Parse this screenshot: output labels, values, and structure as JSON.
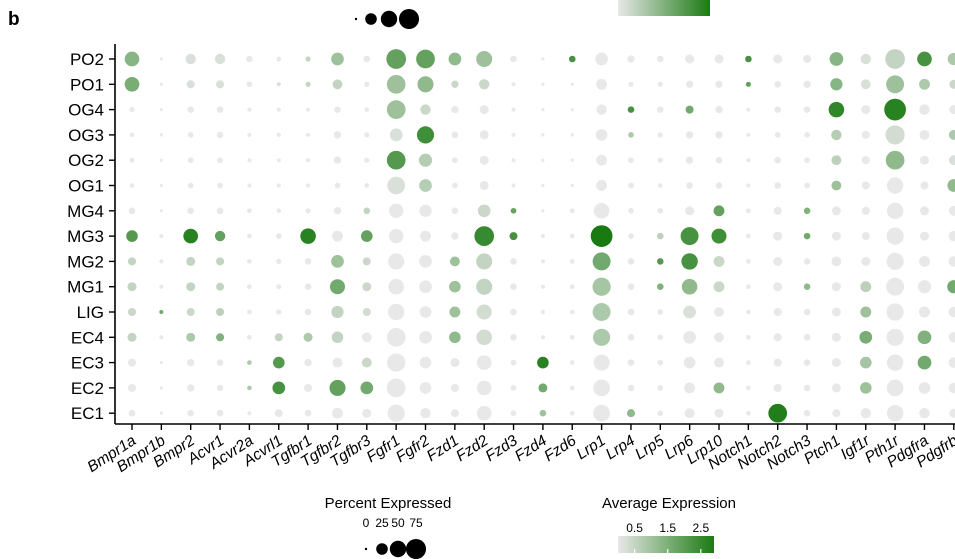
{
  "panel_label": "b",
  "chart_data": {
    "type": "dotplot",
    "genes": [
      "Bmpr1a",
      "Bmpr1b",
      "Bmpr2",
      "Acvr1",
      "Acvr2a",
      "Acvrl1",
      "Tgfbr1",
      "Tgfbr2",
      "Tgfbr3",
      "Fgfr1",
      "Fgfr2",
      "Fzd1",
      "Fzd2",
      "Fzd3",
      "Fzd4",
      "Fzd6",
      "Lrp1",
      "Lrp4",
      "Lrp5",
      "Lrp6",
      "Lrp10",
      "Notch1",
      "Notch2",
      "Notch3",
      "Ptch1",
      "Igf1r",
      "Pth1r",
      "Pdgfra",
      "Pdgfrb"
    ],
    "clusters": [
      "PO2",
      "PO1",
      "OG4",
      "OG3",
      "OG2",
      "OG1",
      "MG4",
      "MG3",
      "MG2",
      "MG1",
      "LIG",
      "EC4",
      "EC3",
      "EC2",
      "EC1"
    ],
    "size_legend": {
      "title": "Percent Expressed",
      "ticks": [
        "0",
        "25",
        "50",
        "75"
      ],
      "values": [
        0,
        25,
        50,
        75
      ]
    },
    "color_legend": {
      "title": "Average Expression",
      "ticks": [
        "0.5",
        "1.5",
        "2.5"
      ],
      "values": [
        0.5,
        1.5,
        2.5
      ],
      "low_color": "#e8e8e8",
      "high_color": "#1a7a12"
    },
    "percent": [
      [
        40,
        2,
        20,
        20,
        8,
        4,
        5,
        30,
        8,
        72,
        65,
        30,
        48,
        8,
        2,
        8,
        30,
        10,
        8,
        15,
        15,
        8,
        15,
        12,
        35,
        20,
        72,
        40,
        28
      ],
      [
        40,
        2,
        12,
        12,
        6,
        3,
        5,
        18,
        5,
        65,
        48,
        10,
        20,
        3,
        2,
        2,
        22,
        5,
        5,
        10,
        10,
        5,
        8,
        10,
        28,
        18,
        60,
        22,
        15
      ],
      [
        5,
        2,
        8,
        8,
        3,
        3,
        3,
        8,
        4,
        65,
        20,
        10,
        15,
        3,
        2,
        2,
        20,
        8,
        8,
        12,
        10,
        3,
        8,
        8,
        45,
        15,
        88,
        20,
        15
      ],
      [
        4,
        2,
        6,
        8,
        3,
        3,
        3,
        10,
        5,
        30,
        55,
        8,
        15,
        3,
        2,
        2,
        25,
        6,
        5,
        10,
        10,
        3,
        6,
        6,
        20,
        12,
        68,
        18,
        18
      ],
      [
        4,
        2,
        6,
        6,
        3,
        3,
        3,
        10,
        5,
        65,
        32,
        6,
        15,
        3,
        2,
        2,
        22,
        6,
        5,
        10,
        8,
        3,
        8,
        6,
        18,
        12,
        65,
        15,
        18
      ],
      [
        4,
        2,
        6,
        6,
        3,
        3,
        3,
        6,
        4,
        58,
        30,
        6,
        15,
        3,
        2,
        2,
        22,
        6,
        4,
        8,
        8,
        3,
        8,
        6,
        18,
        12,
        50,
        12,
        30
      ],
      [
        8,
        2,
        8,
        8,
        4,
        4,
        5,
        10,
        8,
        38,
        28,
        8,
        30,
        6,
        2,
        4,
        45,
        6,
        6,
        15,
        22,
        4,
        12,
        8,
        15,
        12,
        50,
        15,
        18
      ],
      [
        25,
        3,
        40,
        20,
        4,
        6,
        45,
        22,
        25,
        38,
        22,
        10,
        72,
        12,
        3,
        4,
        88,
        6,
        8,
        60,
        42,
        4,
        15,
        8,
        15,
        12,
        55,
        15,
        20
      ],
      [
        12,
        3,
        15,
        12,
        4,
        5,
        8,
        30,
        12,
        48,
        30,
        18,
        48,
        8,
        3,
        4,
        60,
        8,
        8,
        50,
        22,
        4,
        15,
        8,
        18,
        15,
        55,
        22,
        20
      ],
      [
        15,
        3,
        15,
        12,
        4,
        5,
        8,
        42,
        15,
        45,
        30,
        25,
        48,
        8,
        3,
        4,
        62,
        8,
        8,
        45,
        22,
        4,
        15,
        8,
        15,
        22,
        60,
        32,
        32
      ],
      [
        12,
        3,
        12,
        12,
        4,
        5,
        8,
        28,
        12,
        50,
        25,
        22,
        42,
        8,
        3,
        4,
        60,
        8,
        6,
        30,
        18,
        4,
        12,
        8,
        15,
        22,
        55,
        22,
        20
      ],
      [
        15,
        3,
        15,
        12,
        4,
        12,
        15,
        25,
        18,
        65,
        30,
        25,
        45,
        8,
        3,
        4,
        55,
        8,
        6,
        30,
        18,
        4,
        12,
        8,
        15,
        30,
        55,
        35,
        20
      ],
      [
        12,
        2,
        10,
        8,
        4,
        25,
        10,
        18,
        18,
        62,
        25,
        15,
        40,
        6,
        25,
        4,
        48,
        8,
        6,
        25,
        18,
        4,
        12,
        8,
        15,
        25,
        50,
        35,
        20
      ],
      [
        12,
        2,
        10,
        8,
        4,
        30,
        12,
        48,
        30,
        65,
        25,
        12,
        40,
        6,
        15,
        4,
        52,
        8,
        6,
        22,
        22,
        4,
        12,
        8,
        15,
        25,
        52,
        25,
        20
      ],
      [
        8,
        2,
        8,
        8,
        3,
        12,
        8,
        22,
        15,
        55,
        20,
        12,
        40,
        6,
        8,
        4,
        52,
        12,
        6,
        18,
        15,
        4,
        65,
        8,
        12,
        20,
        50,
        20,
        15
      ]
    ],
    "avg": [
      [
        1.3,
        0,
        0.2,
        0.2,
        0,
        0,
        0.5,
        1.0,
        0,
        1.8,
        1.8,
        1.2,
        1.0,
        0,
        0,
        2.2,
        0,
        0,
        0,
        0,
        0,
        2.2,
        0,
        0,
        1.3,
        0.2,
        0.5,
        2.2,
        0.8
      ],
      [
        1.5,
        0,
        0.2,
        0.2,
        0,
        0.2,
        0.5,
        0.5,
        0,
        1.0,
        1.2,
        0.4,
        0.4,
        0,
        0,
        0,
        0,
        0,
        0,
        0,
        0,
        1.8,
        0,
        0,
        1.3,
        0.2,
        1.0,
        0.8,
        0.4
      ],
      [
        0,
        0,
        0,
        0,
        0,
        0,
        0,
        0,
        0,
        1.0,
        0.4,
        0,
        0,
        0,
        0,
        0,
        0,
        2.2,
        0,
        1.6,
        0,
        0,
        0,
        0,
        2.5,
        0,
        2.6,
        0,
        0
      ],
      [
        0,
        0,
        0,
        0,
        0,
        0,
        0,
        0,
        0,
        0.2,
        2.3,
        0,
        0,
        0,
        0,
        0,
        0,
        0.8,
        0,
        0,
        0,
        0,
        0,
        0,
        0.7,
        0,
        0.3,
        0,
        0.8
      ],
      [
        0,
        0,
        0,
        0,
        0,
        0,
        0,
        0,
        0,
        2.0,
        0.7,
        0,
        0,
        0,
        0,
        0,
        0,
        0,
        0,
        0,
        0,
        0,
        0,
        0,
        0.6,
        0,
        1.2,
        0,
        0.2
      ],
      [
        0,
        0,
        0,
        0,
        0,
        0,
        0,
        0,
        0,
        0.2,
        0.7,
        0,
        0,
        0,
        0,
        0,
        0,
        0,
        0,
        0,
        0,
        0,
        0,
        0,
        1.0,
        0,
        0,
        0,
        1.2
      ],
      [
        0,
        0,
        0,
        0,
        0,
        0,
        0,
        0,
        0.5,
        0,
        0,
        0,
        0.4,
        1.8,
        0,
        0,
        0,
        0,
        0,
        0,
        1.8,
        0,
        0,
        1.4,
        0,
        0,
        0,
        0,
        0
      ],
      [
        2.0,
        0,
        2.6,
        1.8,
        0,
        0,
        2.6,
        0,
        1.8,
        0,
        0,
        0,
        2.4,
        2.2,
        0,
        0,
        2.8,
        0,
        0.6,
        2.2,
        2.3,
        0,
        0,
        1.6,
        0,
        0,
        0,
        0,
        0
      ],
      [
        0.5,
        0,
        0.5,
        0.5,
        0,
        0,
        0,
        1.0,
        0.4,
        0,
        0,
        1.0,
        0.5,
        0,
        0,
        0,
        1.6,
        0,
        2.0,
        2.2,
        0.4,
        0,
        0,
        0,
        0,
        0,
        0,
        0,
        0
      ],
      [
        0.5,
        0,
        0.5,
        0.5,
        0,
        0,
        0,
        1.6,
        0.4,
        0,
        0,
        1.0,
        0.5,
        0,
        0,
        0,
        0.9,
        0,
        1.4,
        1.2,
        0.4,
        0,
        0,
        1.2,
        0,
        0.6,
        0,
        0,
        1.6
      ],
      [
        0.4,
        1.6,
        0.4,
        0.6,
        0,
        0,
        0,
        0.5,
        0.3,
        0,
        0,
        1.0,
        0.3,
        0,
        0,
        0,
        0.8,
        0,
        0,
        0.2,
        0,
        0,
        0,
        0,
        0,
        1.0,
        0,
        0,
        0
      ],
      [
        0.5,
        0,
        0.8,
        1.4,
        0,
        0.5,
        0.8,
        0.5,
        0,
        0,
        0,
        1.2,
        0.3,
        0,
        0,
        0,
        0.8,
        0,
        0,
        0,
        0,
        0,
        0,
        0,
        0,
        1.5,
        0,
        1.4,
        0
      ],
      [
        0,
        0,
        0,
        0,
        0.8,
        2.0,
        0,
        0,
        0.4,
        0,
        0,
        0,
        0,
        0,
        2.6,
        0,
        0,
        0,
        0,
        0,
        0,
        0,
        0,
        0,
        0,
        0.9,
        0,
        1.6,
        0
      ],
      [
        0,
        0,
        0,
        0,
        0.8,
        2.2,
        0,
        1.8,
        1.6,
        0,
        0,
        0,
        0,
        0,
        1.6,
        0,
        0,
        0,
        0,
        0,
        1.2,
        0,
        0,
        0,
        0,
        1.0,
        0,
        0,
        0
      ],
      [
        0,
        0,
        0,
        0,
        0,
        0,
        0,
        0,
        0,
        0,
        0,
        0,
        0,
        0,
        1.0,
        0,
        0,
        1.2,
        0,
        0,
        0,
        0,
        2.7,
        0,
        0,
        0,
        0,
        0,
        0
      ]
    ]
  }
}
